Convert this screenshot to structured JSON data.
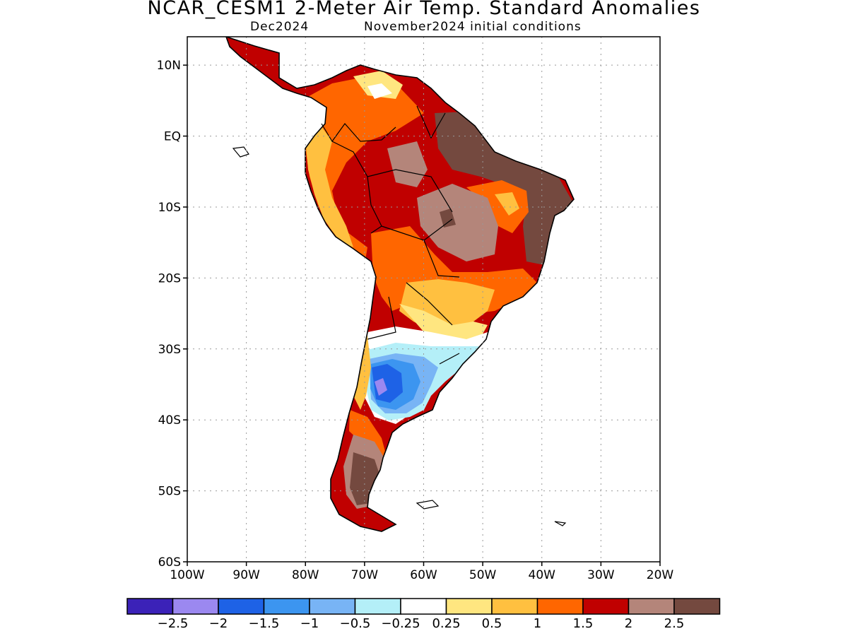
{
  "header": {
    "title": "NCAR_CESM1 2-Meter Air Temp. Standard Anomalies",
    "valid": "Dec2024",
    "init": "November2024 initial conditions"
  },
  "map": {
    "lon_range": [
      -100,
      -20
    ],
    "lat_range": [
      -60,
      14
    ],
    "grid_lines": "dotted",
    "lat_labels": [
      "10N",
      "EQ",
      "10S",
      "20S",
      "30S",
      "40S",
      "50S",
      "60S"
    ],
    "lon_labels": [
      "100W",
      "90W",
      "80W",
      "70W",
      "60W",
      "50W",
      "40W",
      "30W",
      "20W"
    ]
  },
  "colorbar": {
    "colors": [
      "#3b22b8",
      "#9b88f0",
      "#1e62e6",
      "#3c95f0",
      "#78b4f5",
      "#b4eff8",
      "#ffffff",
      "#ffe680",
      "#ffc040",
      "#ff6600",
      "#c00000",
      "#b4857a",
      "#74493f"
    ],
    "labels": [
      "-2.5",
      "-2",
      "-1.5",
      "-1",
      "-0.5",
      "-0.25",
      "0.25",
      "0.5",
      "1",
      "1.5",
      "2",
      "2.5"
    ]
  }
}
